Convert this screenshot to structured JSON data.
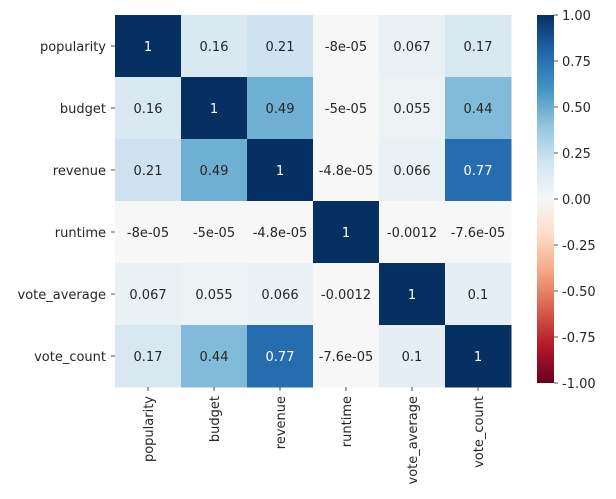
{
  "chart_data": {
    "type": "heatmap",
    "title": "",
    "xlabel": "",
    "ylabel": "",
    "row_labels": [
      "popularity",
      "budget",
      "revenue",
      "runtime",
      "vote_average",
      "vote_count"
    ],
    "col_labels": [
      "popularity",
      "budget",
      "revenue",
      "runtime",
      "vote_average",
      "vote_count"
    ],
    "values": [
      [
        1,
        0.16,
        0.21,
        -8e-05,
        0.067,
        0.17
      ],
      [
        0.16,
        1,
        0.49,
        -5e-05,
        0.055,
        0.44
      ],
      [
        0.21,
        0.49,
        1,
        -4.8e-05,
        0.066,
        0.77
      ],
      [
        -8e-05,
        -5e-05,
        -4.8e-05,
        1,
        -0.0012,
        -7.6e-05
      ],
      [
        0.067,
        0.055,
        0.066,
        -0.0012,
        1,
        0.1
      ],
      [
        0.17,
        0.44,
        0.77,
        -7.6e-05,
        0.1,
        1
      ]
    ],
    "cell_labels": [
      [
        "1",
        "0.16",
        "0.21",
        "-8e-05",
        "0.067",
        "0.17"
      ],
      [
        "0.16",
        "1",
        "0.49",
        "-5e-05",
        "0.055",
        "0.44"
      ],
      [
        "0.21",
        "0.49",
        "1",
        "-4.8e-05",
        "0.066",
        "0.77"
      ],
      [
        "-8e-05",
        "-5e-05",
        "-4.8e-05",
        "1",
        "-0.0012",
        "-7.6e-05"
      ],
      [
        "0.067",
        "0.055",
        "0.066",
        "-0.0012",
        "1",
        "0.1"
      ],
      [
        "0.17",
        "0.44",
        "0.77",
        "-7.6e-05",
        "0.1",
        "1"
      ]
    ],
    "colormap": "RdBu",
    "vmin": -1.0,
    "vmax": 1.0,
    "colorbar_ticks": [
      "1.00",
      "0.75",
      "0.50",
      "0.25",
      "0.00",
      "-0.25",
      "-0.50",
      "-0.75",
      "-1.00"
    ],
    "colorbar_tick_values": [
      1.0,
      0.75,
      0.5,
      0.25,
      0.0,
      -0.25,
      -0.5,
      -0.75,
      -1.0
    ]
  }
}
